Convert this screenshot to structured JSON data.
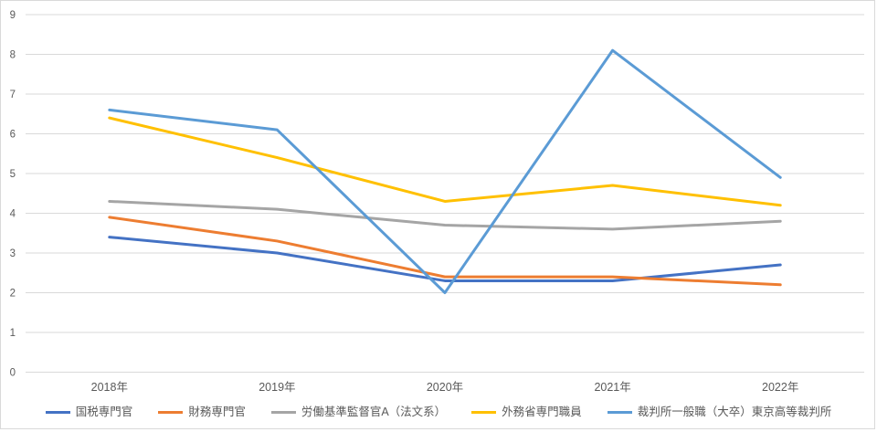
{
  "chart_data": {
    "type": "line",
    "title": "",
    "xlabel": "",
    "ylabel": "",
    "categories": [
      "2018年",
      "2019年",
      "2020年",
      "2021年",
      "2022年"
    ],
    "series": [
      {
        "name": "国税専門官",
        "color": "#4472C4",
        "values": [
          3.4,
          3.0,
          2.3,
          2.3,
          2.7
        ]
      },
      {
        "name": "財務専門官",
        "color": "#ED7D31",
        "values": [
          3.9,
          3.3,
          2.4,
          2.4,
          2.2
        ]
      },
      {
        "name": "労働基準監督官A（法文系）",
        "color": "#A5A5A5",
        "values": [
          4.3,
          4.1,
          3.7,
          3.6,
          3.8
        ]
      },
      {
        "name": "外務省専門職員",
        "color": "#FFC000",
        "values": [
          6.4,
          5.4,
          4.3,
          4.7,
          4.2
        ]
      },
      {
        "name": "裁判所一般職（大卒）東京高等裁判所",
        "color": "#5B9BD5",
        "values": [
          6.6,
          6.1,
          2.0,
          8.1,
          4.9
        ]
      }
    ],
    "ylim": [
      0,
      9
    ],
    "y_ticks": [
      "0",
      "1",
      "2",
      "3",
      "4",
      "5",
      "6",
      "7",
      "8",
      "9"
    ],
    "grid": true,
    "legend_position": "bottom"
  },
  "style": {
    "gridline_color": "#D9D9D9",
    "axis_text_color": "#595959",
    "background_color": "#FFFFFF",
    "border_color": "#D9D9D9",
    "line_width": 3
  }
}
